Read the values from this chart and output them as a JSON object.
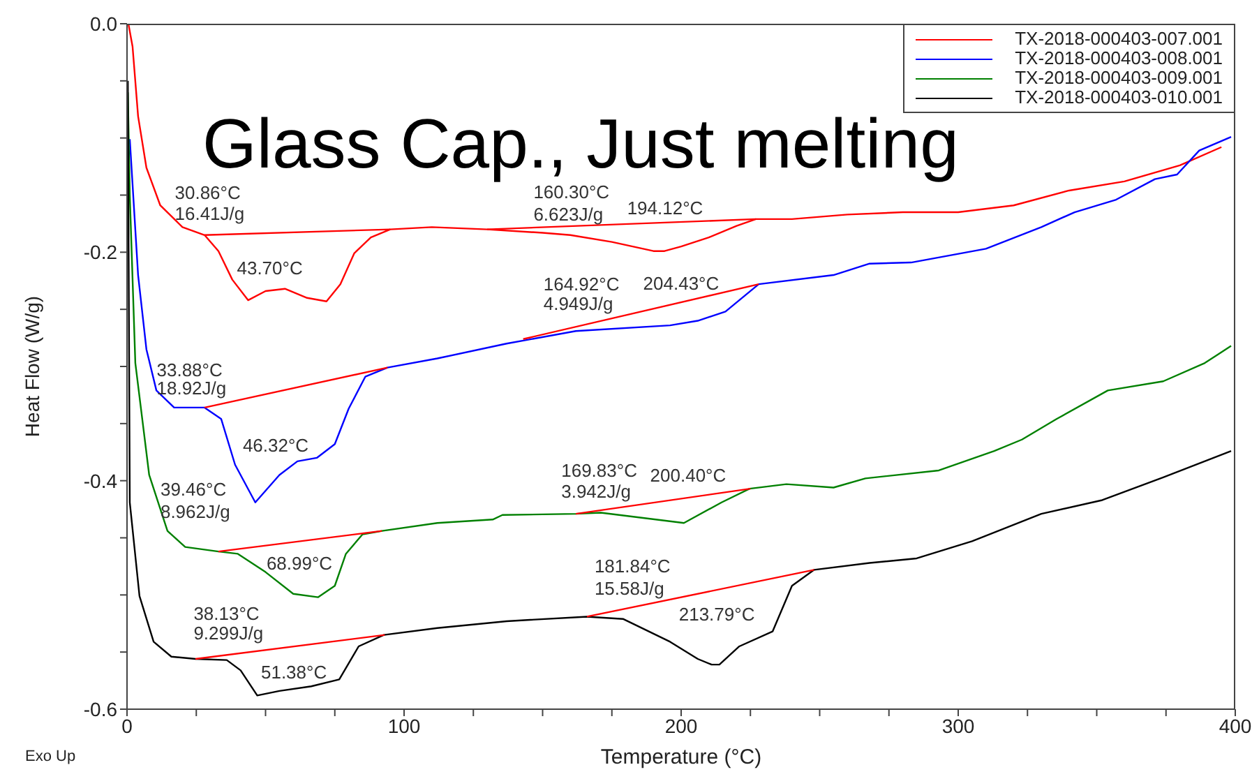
{
  "chart_data": {
    "type": "line",
    "title": "Glass Cap., Just melting",
    "xlabel": "Temperature (°C)",
    "ylabel": "Heat Flow (W/g)",
    "xlim": [
      0,
      400
    ],
    "ylim": [
      -0.6,
      0
    ],
    "xticks": [
      0,
      {
        "value": 25,
        "label": null
      },
      {
        "value": 50,
        "label": null
      },
      {
        "value": 75,
        "label": null
      },
      100,
      {
        "value": 125,
        "label": null
      },
      {
        "value": 150,
        "label": null
      },
      {
        "value": 175,
        "label": null
      },
      200,
      {
        "value": 225,
        "label": null
      },
      {
        "value": 250,
        "label": null
      },
      {
        "value": 275,
        "label": null
      },
      300,
      {
        "value": 325,
        "label": null
      },
      {
        "value": 350,
        "label": null
      },
      {
        "value": 375,
        "label": null
      },
      400
    ],
    "yticks": [
      -0.6,
      {
        "value": -0.55,
        "label": null
      },
      {
        "value": -0.5,
        "label": null
      },
      {
        "value": -0.45,
        "label": null
      },
      -0.4,
      {
        "value": -0.35,
        "label": null
      },
      {
        "value": -0.3,
        "label": null
      },
      {
        "value": -0.25,
        "label": null
      },
      -0.2,
      {
        "value": -0.15,
        "label": null
      },
      {
        "value": -0.1,
        "label": null
      },
      {
        "value": -0.05,
        "label": null
      },
      {
        "value": 0,
        "label": "0.0"
      }
    ],
    "legend": "top right",
    "series": [
      {
        "name": "TX-2018-000403-007.001",
        "color": "#ff0000",
        "x": [
          0.5,
          2,
          4,
          7,
          12,
          20,
          28,
          33,
          38,
          43.7,
          50,
          57,
          65,
          72,
          77,
          82,
          88,
          95,
          110,
          130,
          150,
          160,
          175,
          190,
          194,
          200,
          210,
          220,
          227,
          240,
          260,
          280,
          300,
          320,
          340,
          360,
          380,
          395
        ],
        "values": [
          0,
          -0.02,
          -0.081,
          -0.126,
          -0.159,
          -0.178,
          -0.185,
          -0.199,
          -0.224,
          -0.242,
          -0.234,
          -0.232,
          -0.24,
          -0.243,
          -0.228,
          -0.201,
          -0.187,
          -0.18,
          -0.178,
          -0.18,
          -0.183,
          -0.185,
          -0.191,
          -0.199,
          -0.199,
          -0.195,
          -0.187,
          -0.177,
          -0.171,
          -0.171,
          -0.167,
          -0.165,
          -0.165,
          -0.159,
          -0.146,
          -0.138,
          -0.124,
          -0.108
        ]
      },
      {
        "name": "TX-2018-000403-008.001",
        "color": "#0000ff",
        "x": [
          1,
          4,
          7,
          10.6,
          17,
          28,
          34,
          39,
          46.3,
          55,
          61.5,
          68.5,
          75,
          80,
          86,
          94,
          112,
          137,
          162,
          196,
          206,
          216,
          228,
          255,
          268,
          283,
          310,
          330,
          342,
          357,
          371,
          379,
          387,
          398.5
        ],
        "values": [
          -0.101,
          -0.22,
          -0.285,
          -0.321,
          -0.336,
          -0.336,
          -0.346,
          -0.386,
          -0.419,
          -0.395,
          -0.383,
          -0.38,
          -0.368,
          -0.337,
          -0.309,
          -0.301,
          -0.293,
          -0.28,
          -0.269,
          -0.264,
          -0.26,
          -0.252,
          -0.228,
          -0.22,
          -0.21,
          -0.209,
          -0.197,
          -0.178,
          -0.165,
          -0.154,
          -0.136,
          -0.132,
          -0.111,
          -0.099
        ]
      },
      {
        "name": "TX-2018-000403-009.001",
        "color": "#008000",
        "x": [
          0.3,
          1,
          3,
          8,
          14.6,
          21,
          33,
          40,
          50,
          60,
          69,
          75,
          79,
          85,
          92,
          112,
          132,
          135.5,
          162,
          171,
          201,
          214.6,
          224.7,
          238,
          255,
          266.5,
          293,
          313,
          323,
          335.5,
          354,
          374,
          389,
          398.5
        ],
        "values": [
          -0.06,
          -0.15,
          -0.297,
          -0.395,
          -0.444,
          -0.458,
          -0.462,
          -0.464,
          -0.48,
          -0.499,
          -0.502,
          -0.492,
          -0.464,
          -0.447,
          -0.444,
          -0.437,
          -0.434,
          -0.43,
          -0.429,
          -0.428,
          -0.437,
          -0.419,
          -0.407,
          -0.403,
          -0.406,
          -0.398,
          -0.391,
          -0.374,
          -0.364,
          -0.346,
          -0.321,
          -0.313,
          -0.297,
          -0.282
        ]
      },
      {
        "name": "TX-2018-000403-010.001",
        "color": "#000000",
        "x": [
          0.3,
          1,
          4.5,
          9.6,
          16,
          24.7,
          36,
          41,
          47,
          55,
          66.5,
          76.6,
          83.6,
          92.7,
          112,
          137,
          166,
          179,
          196,
          206,
          211,
          213.8,
          221,
          233,
          240,
          248,
          268,
          285,
          305,
          330,
          352,
          374,
          398.5
        ],
        "values": [
          -0.05,
          -0.419,
          -0.501,
          -0.541,
          -0.554,
          -0.556,
          -0.557,
          -0.566,
          -0.588,
          -0.584,
          -0.58,
          -0.574,
          -0.545,
          -0.535,
          -0.529,
          -0.523,
          -0.519,
          -0.521,
          -0.541,
          -0.556,
          -0.561,
          -0.561,
          -0.545,
          -0.532,
          -0.492,
          -0.478,
          -0.472,
          -0.468,
          -0.453,
          -0.429,
          -0.417,
          -0.397,
          -0.374
        ]
      },
      {
        "type": "line",
        "color": "#ff0000",
        "x": [
          28,
          95
        ],
        "values": [
          -0.185,
          -0.18
        ]
      },
      {
        "type": "line",
        "color": "#ff0000",
        "x": [
          130,
          227
        ],
        "values": [
          -0.18,
          -0.171
        ]
      },
      {
        "type": "line",
        "color": "#ff0000",
        "x": [
          28,
          94
        ],
        "values": [
          -0.336,
          -0.301
        ]
      },
      {
        "type": "line",
        "color": "#ff0000",
        "x": [
          143,
          228
        ],
        "values": [
          -0.276,
          -0.228
        ]
      },
      {
        "type": "line",
        "color": "#ff0000",
        "x": [
          33,
          92
        ],
        "values": [
          -0.462,
          -0.444
        ]
      },
      {
        "type": "line",
        "color": "#ff0000",
        "x": [
          162,
          225
        ],
        "values": [
          -0.429,
          -0.407
        ]
      },
      {
        "type": "line",
        "color": "#ff0000",
        "x": [
          24.7,
          93
        ],
        "values": [
          -0.556,
          -0.535
        ]
      },
      {
        "type": "line",
        "color": "#ff0000",
        "x": [
          166,
          248
        ],
        "values": [
          -0.519,
          -0.478
        ]
      }
    ],
    "annotations": [
      {
        "text": "30.86°C",
        "x": 30.86,
        "y": -0.186
      },
      {
        "text": "16.41J/g",
        "x": 30.86,
        "y": -0.186
      },
      {
        "text": "43.70°C",
        "x": 43.7,
        "y": -0.242
      },
      {
        "text": "160.30°C",
        "x": 160.3,
        "y": -0.184
      },
      {
        "text": "6.623J/g",
        "x": 160.3,
        "y": -0.184
      },
      {
        "text": "194.12°C",
        "x": 194.12,
        "y": -0.199
      },
      {
        "text": "164.92°C",
        "x": 164.92,
        "y": -0.267
      },
      {
        "text": "4.949J/g",
        "x": 164.92,
        "y": -0.267
      },
      {
        "text": "204.43°C",
        "x": 204.43,
        "y": -0.259
      },
      {
        "text": "33.88°C",
        "x": 33.88,
        "y": -0.335
      },
      {
        "text": "18.92J/g",
        "x": 33.88,
        "y": -0.335
      },
      {
        "text": "46.32°C",
        "x": 46.32,
        "y": -0.419
      },
      {
        "text": "39.46°C",
        "x": 14.6,
        "y": -0.444
      },
      {
        "text": "8.962J/g",
        "x": 14.6,
        "y": -0.444
      },
      {
        "text": "169.83°C",
        "x": 169.83,
        "y": -0.428
      },
      {
        "text": "3.942J/g",
        "x": 169.83,
        "y": -0.428
      },
      {
        "text": "200.40°C",
        "x": 200.4,
        "y": -0.437
      },
      {
        "text": "68.99°C",
        "x": 68.99,
        "y": -0.502
      },
      {
        "text": "181.84°C",
        "x": 181.84,
        "y": -0.521
      },
      {
        "text": "15.58J/g",
        "x": 181.84,
        "y": -0.521
      },
      {
        "text": "213.79°C",
        "x": 213.79,
        "y": -0.561
      },
      {
        "text": "38.13°C",
        "x": 38.13,
        "y": -0.557
      },
      {
        "text": "9.299J/g",
        "x": 38.13,
        "y": -0.557
      },
      {
        "text": "51.38°C",
        "x": 51.38,
        "y": -0.587
      },
      "Exo Up"
    ]
  }
}
